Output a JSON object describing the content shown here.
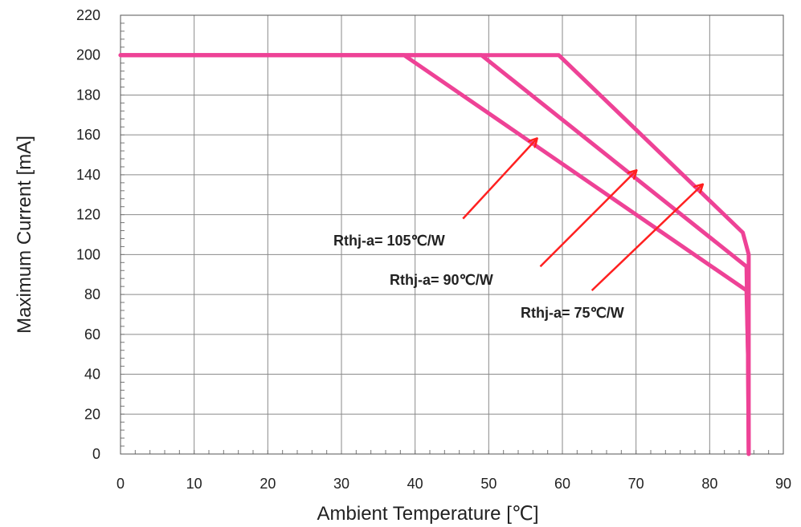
{
  "chart_data": {
    "type": "line",
    "title": "",
    "xlabel": "Ambient Temperature [℃]",
    "ylabel": "Maximum Current [mA]",
    "xlim": [
      0,
      90
    ],
    "ylim": [
      0,
      220
    ],
    "x_ticks": [
      "0",
      "10",
      "20",
      "30",
      "40",
      "50",
      "60",
      "70",
      "80",
      "90"
    ],
    "y_ticks": [
      "0",
      "20",
      "40",
      "60",
      "80",
      "100",
      "120",
      "140",
      "160",
      "180",
      "200",
      "220"
    ],
    "grid": true,
    "series": [
      {
        "name": "Rthj-a= 105℃/W",
        "x": [
          0,
          38.5,
          85,
          85.2,
          85.3
        ],
        "y": [
          200,
          200,
          82,
          50,
          0
        ]
      },
      {
        "name": "Rthj-a= 90℃/W",
        "x": [
          0,
          49,
          85,
          85.2,
          85.3
        ],
        "y": [
          200,
          200,
          94,
          50,
          0
        ]
      },
      {
        "name": "Rthj-a= 75℃/W",
        "x": [
          0,
          59.5,
          84.5,
          85.3,
          85.3
        ],
        "y": [
          200,
          200,
          111,
          100,
          0
        ]
      }
    ],
    "line_color": "#ee4296",
    "arrow_color": "#ff2020",
    "annotations": [
      {
        "text": "Rthj-a= 105℃/W",
        "arrow_from": [
          46.5,
          118
        ],
        "arrow_to": [
          56.5,
          158
        ]
      },
      {
        "text": "Rthj-a= 90℃/W",
        "arrow_from": [
          57,
          94
        ],
        "arrow_to": [
          70,
          142
        ]
      },
      {
        "text": "Rthj-a= 75℃/W",
        "arrow_from": [
          64,
          82
        ],
        "arrow_to": [
          79,
          135
        ]
      }
    ]
  }
}
